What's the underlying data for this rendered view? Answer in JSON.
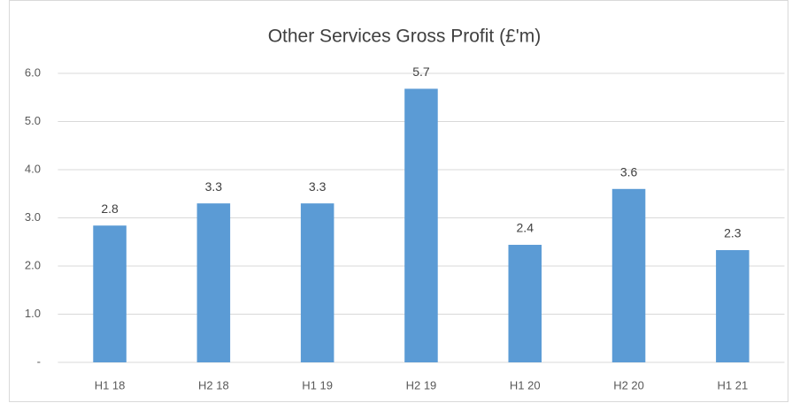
{
  "chart_data": {
    "type": "bar",
    "title": "Other Services Gross Profit (£'m)",
    "categories": [
      "H1 18",
      "H2 18",
      "H1 19",
      "H2 19",
      "H1 20",
      "H2 20",
      "H1 21"
    ],
    "values": [
      2.84,
      3.3,
      3.3,
      5.68,
      2.44,
      3.6,
      2.33
    ],
    "value_labels": [
      "2.8",
      "3.3",
      "3.3",
      "5.7",
      "2.4",
      "3.6",
      "2.3"
    ],
    "color": "#5b9bd5",
    "ylim": [
      0,
      6
    ],
    "yticks": [
      {
        "value": 0,
        "label": "-"
      },
      {
        "value": 1,
        "label": "1.0"
      },
      {
        "value": 2,
        "label": "2.0"
      },
      {
        "value": 3,
        "label": "3.0"
      },
      {
        "value": 4,
        "label": "4.0"
      },
      {
        "value": 5,
        "label": "5.0"
      },
      {
        "value": 6,
        "label": "6.0"
      }
    ],
    "grid": true
  }
}
